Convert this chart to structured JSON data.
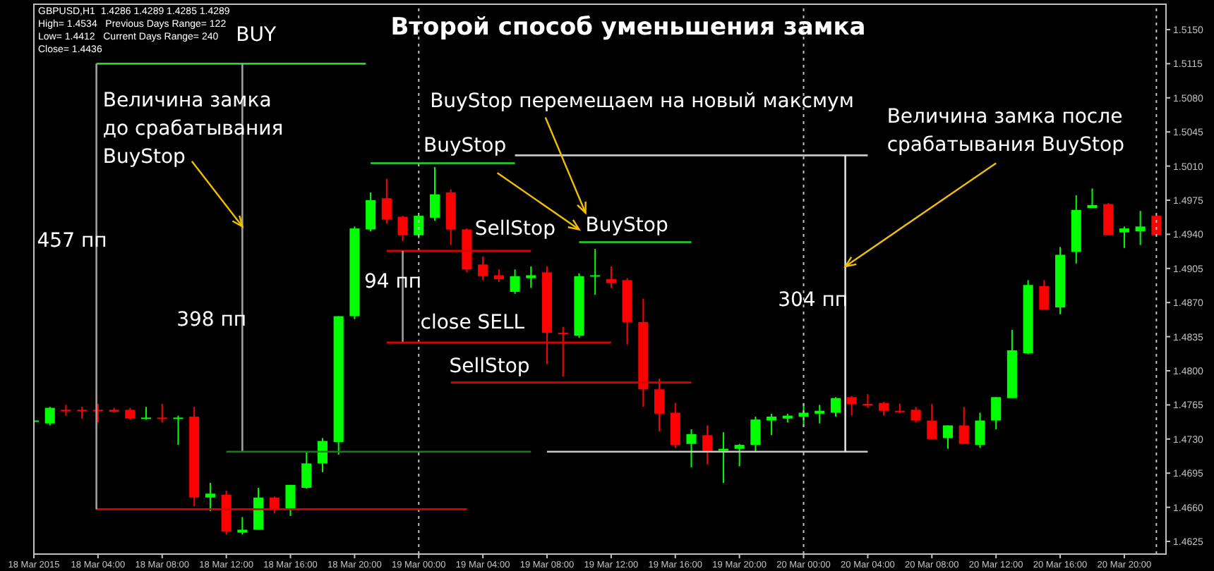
{
  "chart_data": {
    "type": "candlestick",
    "title": "Второй способ уменьшения замка",
    "x": [
      "2015-03-18T00:00",
      "2015-03-18T01:00",
      "2015-03-18T02:00",
      "2015-03-18T03:00",
      "2015-03-18T04:00",
      "2015-03-18T05:00",
      "2015-03-18T06:00",
      "2015-03-18T07:00",
      "2015-03-18T08:00",
      "2015-03-18T09:00",
      "2015-03-18T10:00",
      "2015-03-18T11:00",
      "2015-03-18T12:00",
      "2015-03-18T13:00",
      "2015-03-18T14:00",
      "2015-03-18T15:00",
      "2015-03-18T16:00",
      "2015-03-18T17:00",
      "2015-03-18T18:00",
      "2015-03-18T19:00",
      "2015-03-18T20:00",
      "2015-03-18T21:00",
      "2015-03-18T22:00",
      "2015-03-18T23:00",
      "2015-03-19T00:00",
      "2015-03-19T01:00",
      "2015-03-19T02:00",
      "2015-03-19T03:00",
      "2015-03-19T04:00",
      "2015-03-19T05:00",
      "2015-03-19T06:00",
      "2015-03-19T07:00",
      "2015-03-19T08:00",
      "2015-03-19T09:00",
      "2015-03-19T10:00",
      "2015-03-19T11:00",
      "2015-03-19T12:00",
      "2015-03-19T13:00",
      "2015-03-19T14:00",
      "2015-03-19T15:00",
      "2015-03-19T16:00",
      "2015-03-19T17:00",
      "2015-03-19T18:00",
      "2015-03-19T19:00",
      "2015-03-19T20:00",
      "2015-03-19T21:00",
      "2015-03-19T22:00",
      "2015-03-19T23:00",
      "2015-03-20T00:00",
      "2015-03-20T01:00",
      "2015-03-20T02:00",
      "2015-03-20T03:00",
      "2015-03-20T04:00",
      "2015-03-20T05:00",
      "2015-03-20T06:00",
      "2015-03-20T07:00",
      "2015-03-20T08:00",
      "2015-03-20T09:00",
      "2015-03-20T10:00",
      "2015-03-20T11:00",
      "2015-03-20T12:00",
      "2015-03-20T13:00",
      "2015-03-20T14:00",
      "2015-03-20T15:00",
      "2015-03-20T16:00",
      "2015-03-20T17:00",
      "2015-03-20T18:00",
      "2015-03-20T19:00",
      "2015-03-20T20:00",
      "2015-03-20T21:00",
      "2015-03-20T22:00"
    ],
    "ohlc": [
      [
        1.4748,
        1.4751,
        1.4747,
        1.4749
      ],
      [
        1.4746,
        1.4763,
        1.4744,
        1.4762
      ],
      [
        1.476,
        1.4765,
        1.4754,
        1.4759
      ],
      [
        1.476,
        1.4763,
        1.4751,
        1.4759
      ],
      [
        1.476,
        1.4766,
        1.4747,
        1.4759
      ],
      [
        1.476,
        1.4762,
        1.4757,
        1.4758
      ],
      [
        1.476,
        1.4762,
        1.475,
        1.4751
      ],
      [
        1.4751,
        1.4763,
        1.475,
        1.4752
      ],
      [
        1.4752,
        1.4766,
        1.4747,
        1.4751
      ],
      [
        1.4751,
        1.4754,
        1.4724,
        1.4752
      ],
      [
        1.4753,
        1.4763,
        1.4661,
        1.467
      ],
      [
        1.467,
        1.4685,
        1.4656,
        1.4674
      ],
      [
        1.4673,
        1.4677,
        1.4632,
        1.4635
      ],
      [
        1.4634,
        1.465,
        1.4632,
        1.4637
      ],
      [
        1.4637,
        1.468,
        1.4637,
        1.467
      ],
      [
        1.467,
        1.4671,
        1.4654,
        1.4658
      ],
      [
        1.4658,
        1.4683,
        1.4651,
        1.4683
      ],
      [
        1.468,
        1.4717,
        1.4679,
        1.4705
      ],
      [
        1.4705,
        1.4731,
        1.4696,
        1.4728
      ],
      [
        1.4727,
        1.4856,
        1.4714,
        1.4856
      ],
      [
        1.4856,
        1.4948,
        1.4853,
        1.4946
      ],
      [
        1.4945,
        1.4983,
        1.4943,
        1.4975
      ],
      [
        1.4977,
        1.4997,
        1.4951,
        1.4955
      ],
      [
        1.4958,
        1.4959,
        1.4933,
        1.4939
      ],
      [
        1.4939,
        1.4959,
        1.4936,
        1.4959
      ],
      [
        1.4957,
        1.5009,
        1.4954,
        1.4981
      ],
      [
        1.4983,
        1.4986,
        1.4929,
        1.4945
      ],
      [
        1.4945,
        1.4946,
        1.4901,
        1.4904
      ],
      [
        1.4909,
        1.4917,
        1.4893,
        1.4897
      ],
      [
        1.4898,
        1.4904,
        1.4891,
        1.4894
      ],
      [
        1.4881,
        1.4904,
        1.4879,
        1.4897
      ],
      [
        1.4895,
        1.4907,
        1.4885,
        1.4898
      ],
      [
        1.4901,
        1.4907,
        1.4807,
        1.4839
      ],
      [
        1.4839,
        1.4845,
        1.4794,
        1.4838
      ],
      [
        1.4836,
        1.49,
        1.4834,
        1.4897
      ],
      [
        1.4897,
        1.4925,
        1.4878,
        1.4898
      ],
      [
        1.4894,
        1.4907,
        1.4885,
        1.489
      ],
      [
        1.4893,
        1.4895,
        1.4827,
        1.485
      ],
      [
        1.485,
        1.4874,
        1.4763,
        1.4781
      ],
      [
        1.4781,
        1.4792,
        1.4738,
        1.4756
      ],
      [
        1.4757,
        1.4767,
        1.4721,
        1.4724
      ],
      [
        1.4725,
        1.474,
        1.4701,
        1.4735
      ],
      [
        1.4734,
        1.4744,
        1.4704,
        1.4718
      ],
      [
        1.4718,
        1.4737,
        1.4685,
        1.472
      ],
      [
        1.472,
        1.4725,
        1.4702,
        1.4724
      ],
      [
        1.4724,
        1.4753,
        1.4717,
        1.475
      ],
      [
        1.4749,
        1.4756,
        1.4734,
        1.4753
      ],
      [
        1.4751,
        1.4756,
        1.4747,
        1.4754
      ],
      [
        1.4753,
        1.4767,
        1.4743,
        1.4757
      ],
      [
        1.4756,
        1.4765,
        1.4746,
        1.4759
      ],
      [
        1.4757,
        1.4773,
        1.4753,
        1.4772
      ],
      [
        1.4773,
        1.4774,
        1.4754,
        1.4766
      ],
      [
        1.4766,
        1.4776,
        1.4762,
        1.4765
      ],
      [
        1.4767,
        1.4768,
        1.4754,
        1.4759
      ],
      [
        1.4759,
        1.4766,
        1.4757,
        1.4758
      ],
      [
        1.476,
        1.4763,
        1.4747,
        1.4749
      ],
      [
        1.4749,
        1.4766,
        1.473,
        1.473
      ],
      [
        1.4731,
        1.4744,
        1.472,
        1.4744
      ],
      [
        1.4744,
        1.4763,
        1.4725,
        1.4725
      ],
      [
        1.4724,
        1.4757,
        1.4721,
        1.4749
      ],
      [
        1.4749,
        1.4773,
        1.474,
        1.4773
      ],
      [
        1.4772,
        1.4842,
        1.4772,
        1.4821
      ],
      [
        1.4818,
        1.4893,
        1.4817,
        1.4888
      ],
      [
        1.4887,
        1.4893,
        1.4863,
        1.4863
      ],
      [
        1.4865,
        1.4927,
        1.4858,
        1.4919
      ],
      [
        1.4922,
        1.498,
        1.491,
        1.4965
      ],
      [
        1.4967,
        1.4987,
        1.4967,
        1.497
      ],
      [
        1.4971,
        1.4972,
        1.4939,
        1.4939
      ],
      [
        1.4942,
        1.4948,
        1.4926,
        1.4946
      ],
      [
        1.4943,
        1.4964,
        1.4929,
        1.4948
      ],
      [
        1.4959,
        1.496,
        1.4939,
        1.4939
      ]
    ],
    "colors": [
      "#00ff00",
      "#00ff00",
      "#ff0000",
      "#ff0000",
      "#ff0000",
      "#ff0000",
      "#ff0000",
      "#00ff00",
      "#ff0000",
      "#00ff00",
      "#ff0000",
      "#00ff00",
      "#ff0000",
      "#00ff00",
      "#00ff00",
      "#ff0000",
      "#00ff00",
      "#00ff00",
      "#00ff00",
      "#00ff00",
      "#00ff00",
      "#00ff00",
      "#ff0000",
      "#ff0000",
      "#00ff00",
      "#00ff00",
      "#ff0000",
      "#ff0000",
      "#ff0000",
      "#ff0000",
      "#00ff00",
      "#00ff00",
      "#ff0000",
      "#ff0000",
      "#00ff00",
      "#00ff00",
      "#ff0000",
      "#ff0000",
      "#ff0000",
      "#ff0000",
      "#ff0000",
      "#00ff00",
      "#ff0000",
      "#00ff00",
      "#00ff00",
      "#00ff00",
      "#00ff00",
      "#00ff00",
      "#00ff00",
      "#00ff00",
      "#00ff00",
      "#ff0000",
      "#ff0000",
      "#ff0000",
      "#ff0000",
      "#ff0000",
      "#ff0000",
      "#00ff00",
      "#ff0000",
      "#00ff00",
      "#00ff00",
      "#00ff00",
      "#00ff00",
      "#ff0000",
      "#00ff00",
      "#00ff00",
      "#00ff00",
      "#ff0000",
      "#00ff00",
      "#00ff00",
      "#ff0000"
    ],
    "series": [
      {
        "type": "line",
        "x": [
          "2015-03-18T03:54",
          "2015-03-18T20:42"
        ],
        "values": [
          1.5115,
          1.5115
        ],
        "color": "#22dd22"
      },
      {
        "type": "line",
        "x": [
          "2015-03-18T03:54",
          "2015-03-19T03:00"
        ],
        "values": [
          1.4658,
          1.4658
        ],
        "color": "#dd0000"
      },
      {
        "type": "line",
        "x": [
          "2015-03-18T03:54",
          "2015-03-18T03:54"
        ],
        "values": [
          1.5115,
          1.4658
        ],
        "color": "#a0a0a0"
      },
      {
        "type": "line",
        "x": [
          "2015-03-18T13:00",
          "2015-03-18T13:00"
        ],
        "values": [
          1.5115,
          1.4717
        ],
        "color": "#a0a0a0"
      },
      {
        "type": "line",
        "x": [
          "2015-03-18T12:00",
          "2015-03-19T07:00"
        ],
        "values": [
          1.4717,
          1.4717
        ],
        "color": "#108010"
      },
      {
        "type": "line",
        "x": [
          "2015-03-18T21:00",
          "2015-03-19T06:00"
        ],
        "values": [
          1.5013,
          1.5013
        ],
        "color": "#22dd22"
      },
      {
        "type": "line",
        "x": [
          "2015-03-19T06:00",
          "2015-03-20T04:00"
        ],
        "values": [
          1.5021,
          1.5021
        ],
        "color": "#c8c8c8"
      },
      {
        "type": "line",
        "x": [
          "2015-03-19T08:00",
          "2015-03-20T04:00"
        ],
        "values": [
          1.4717,
          1.4717
        ],
        "color": "#c8c8c8"
      },
      {
        "type": "line",
        "x": [
          "2015-03-20T02:36",
          "2015-03-20T02:36"
        ],
        "values": [
          1.5021,
          1.4717
        ],
        "color": "#e0e0e0"
      },
      {
        "type": "line",
        "x": [
          "2015-03-18T22:00",
          "2015-03-19T07:00"
        ],
        "values": [
          1.4923,
          1.4923
        ],
        "color": "#dd0000"
      },
      {
        "type": "line",
        "x": [
          "2015-03-18T23:00",
          "2015-03-18T23:00"
        ],
        "values": [
          1.4923,
          1.4829
        ],
        "color": "#a0a0a0"
      },
      {
        "type": "line",
        "x": [
          "2015-03-18T22:00",
          "2015-03-19T12:00"
        ],
        "values": [
          1.4829,
          1.4829
        ],
        "color": "#dd0000"
      },
      {
        "type": "line",
        "x": [
          "2015-03-19T02:00",
          "2015-03-19T17:00"
        ],
        "values": [
          1.4788,
          1.4788
        ],
        "color": "#dd0000"
      },
      {
        "type": "line",
        "x": [
          "2015-03-19T10:00",
          "2015-03-19T17:00"
        ],
        "values": [
          1.4932,
          1.4932
        ],
        "color": "#22dd22"
      }
    ],
    "ref_lines": [
      {
        "axis": "x",
        "value": "2015-03-19T00:00",
        "color": "#c0c0c0",
        "line_style": "dotted"
      },
      {
        "axis": "x",
        "value": "2015-03-20T00:00",
        "color": "#c0c0c0",
        "line_style": "dotted"
      },
      {
        "axis": "x",
        "value": "2015-03-20T22:00",
        "color": "#c0c0c0",
        "line_style": "dotted"
      }
    ],
    "xlim": [
      "2015-03-18T00:00",
      "2015-03-20T22:36"
    ],
    "xticks": [
      {
        "value": "2015-03-18T00:00",
        "label": "18 Mar 2015"
      },
      {
        "value": "2015-03-18T04:00",
        "label": "18 Mar 04:00"
      },
      {
        "value": "2015-03-18T08:00",
        "label": "18 Mar 08:00"
      },
      {
        "value": "2015-03-18T12:00",
        "label": "18 Mar 12:00"
      },
      {
        "value": "2015-03-18T16:00",
        "label": "18 Mar 16:00"
      },
      {
        "value": "2015-03-18T20:00",
        "label": "18 Mar 20:00"
      },
      {
        "value": "2015-03-19T00:00",
        "label": "19 Mar 00:00"
      },
      {
        "value": "2015-03-19T04:00",
        "label": "19 Mar 04:00"
      },
      {
        "value": "2015-03-19T08:00",
        "label": "19 Mar 08:00"
      },
      {
        "value": "2015-03-19T12:00",
        "label": "19 Mar 12:00"
      },
      {
        "value": "2015-03-19T16:00",
        "label": "19 Mar 16:00"
      },
      {
        "value": "2015-03-19T20:00",
        "label": "19 Mar 20:00"
      },
      {
        "value": "2015-03-20T00:00",
        "label": "20 Mar 00:00"
      },
      {
        "value": "2015-03-20T04:00",
        "label": "20 Mar 04:00"
      },
      {
        "value": "2015-03-20T08:00",
        "label": "20 Mar 08:00"
      },
      {
        "value": "2015-03-20T12:00",
        "label": "20 Mar 12:00"
      },
      {
        "value": "2015-03-20T16:00",
        "label": "20 Mar 16:00"
      },
      {
        "value": "2015-03-20T20:00",
        "label": "20 Mar 20:00"
      }
    ],
    "ylim": [
      1.4612,
      1.5176
    ],
    "yticks": [
      1.4625,
      {
        "value": 1.466,
        "label": "1.4660"
      },
      1.4695,
      {
        "value": 1.473,
        "label": "1.4730"
      },
      1.4765,
      {
        "value": 1.48,
        "label": "1.4800"
      },
      1.4835,
      {
        "value": 1.487,
        "label": "1.4870"
      },
      1.4905,
      {
        "value": 1.494,
        "label": "1.4940"
      },
      1.4975,
      {
        "value": 1.501,
        "label": "1.5010"
      },
      1.5045,
      {
        "value": 1.508,
        "label": "1.5080"
      },
      1.5115,
      {
        "value": 1.515,
        "label": "1.5150"
      }
    ],
    "annotations": [
      "GBPUSD,H1  1.4286 1.4289 1.4285 1.4289",
      "High= 1.4534   Previous Days Range= 122",
      "Low= 1.4412   Current Days Range= 240",
      "Close= 1.4436",
      "BUY",
      {
        "text": "Величина замка\nдо срабатывания\nBuyStop",
        "x": "2015-03-18T13:00",
        "y": 1.4948
      },
      "457 пп",
      "398 пп",
      "BuyStop перемещаем на новый максмум",
      "BuyStop",
      "SellStop",
      "BuyStop",
      "94 пп",
      "close SELL",
      "SellStop",
      "304 пп",
      {
        "text": "Величина замка после\nсрабатывания BuyStop",
        "x": "2015-03-20T02:36",
        "y": 1.4907
      }
    ]
  }
}
